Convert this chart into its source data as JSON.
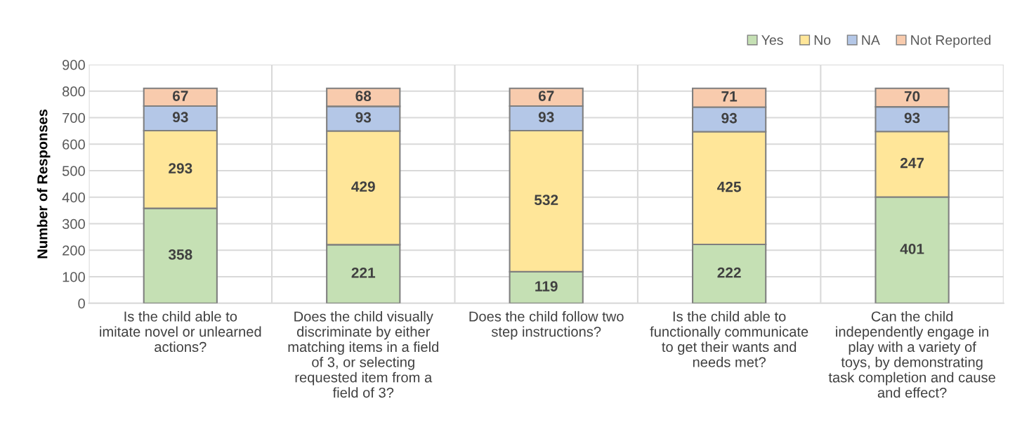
{
  "chart_data": {
    "type": "bar",
    "stacked": true,
    "ylabel": "Number of Responses",
    "categories": [
      "Is the child able to imitate novel or unlearned actions?",
      "Does the child visually discriminate by either matching items in a field of 3, or selecting requested item from a field of 3?",
      "Does the child follow two step instructions?",
      "Is the child able to functionally communicate to get their wants and needs met?",
      "Can the child independently engage in play with a variety of toys, by demonstrating task completion and cause and effect?"
    ],
    "series": [
      {
        "name": "Yes",
        "color": "#c5e0b4",
        "values": [
          358,
          221,
          119,
          222,
          401
        ]
      },
      {
        "name": "No",
        "color": "#ffe699",
        "values": [
          293,
          429,
          532,
          425,
          247
        ]
      },
      {
        "name": "NA",
        "color": "#b4c7e7",
        "values": [
          93,
          93,
          93,
          93,
          93
        ]
      },
      {
        "name": "Not Reported",
        "color": "#f8cbad",
        "values": [
          67,
          68,
          67,
          71,
          70
        ]
      }
    ],
    "ylim": [
      0,
      900
    ],
    "yticks": [
      0,
      100,
      200,
      300,
      400,
      500,
      600,
      700,
      800,
      900
    ],
    "grid": true,
    "legend": "top right",
    "data_labels": true
  }
}
